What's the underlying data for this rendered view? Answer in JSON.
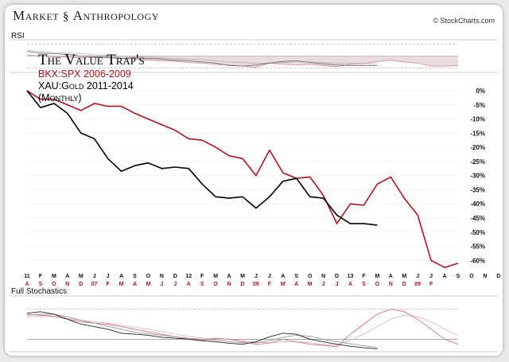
{
  "brand": {
    "word1": "Market",
    "word2": "Anthropology"
  },
  "credit": "© StockCharts.com",
  "rsi_label": "RSI",
  "stoch_label": "Full Stochastics",
  "title": "The Value Trap's",
  "subtitle_red": "BKX:SPX 2006-2009",
  "subtitle_black": "XAU:Gold 2011-2014",
  "subtitle_period": "(Monthly)",
  "colors": {
    "red": "#b0141a",
    "black": "#000000",
    "grid": "#c8c8c8"
  },
  "chart_data": {
    "type": "line",
    "yticks": [
      "0%",
      "-5%",
      "-10%",
      "-15%",
      "-20%",
      "-25%",
      "-30%",
      "-35%",
      "-40%",
      "-45%",
      "-50%",
      "-55%",
      "-60%"
    ],
    "ylim": [
      -63,
      0
    ],
    "x_labels_black": [
      "11",
      "F",
      "M",
      "A",
      "M",
      "J",
      "J",
      "A",
      "S",
      "O",
      "N",
      "D",
      "12",
      "F",
      "M",
      "A",
      "M",
      "J",
      "J",
      "A",
      "S",
      "O",
      "N",
      "D",
      "13",
      "F",
      "M",
      "A",
      "M",
      "J",
      "J",
      "A",
      "S",
      "O",
      "N",
      "D"
    ],
    "x_labels_red": [
      "A",
      "S",
      "O",
      "N",
      "D",
      "07",
      "F",
      "M",
      "A",
      "M",
      "J",
      "J",
      "A",
      "S",
      "O",
      "N",
      "D",
      "08",
      "F",
      "M",
      "A",
      "M",
      "J",
      "J",
      "A",
      "S",
      "O",
      "N",
      "D",
      "09",
      "F"
    ],
    "series": [
      {
        "name": "BKX:SPX 2006-2009",
        "color": "#b0141a",
        "values": [
          0,
          -3,
          -3,
          -5,
          -7,
          -4.5,
          -5.5,
          -5.5,
          -8,
          -10,
          -12,
          -14,
          -17,
          -17.5,
          -20,
          -23,
          -24,
          -30,
          -21,
          -29,
          -31,
          -30.5,
          -37,
          -47,
          -40,
          -40.5,
          -33,
          -30.5,
          -38,
          -44,
          -60,
          -62.5,
          -61
        ]
      },
      {
        "name": "XAU:Gold 2011-2014",
        "color": "#000000",
        "values": [
          0,
          -6,
          -4.5,
          -8,
          -15,
          -17,
          -24,
          -28.5,
          -26.5,
          -25.5,
          -27.5,
          -27,
          -27.5,
          -33,
          -37.5,
          -38,
          -37.5,
          -41.5,
          -37.5,
          -32,
          -31,
          -37.5,
          -38,
          -44,
          -47,
          -47,
          -47.5
        ]
      }
    ]
  },
  "rsi": {
    "levels": [
      70,
      50,
      30
    ],
    "red": [
      52,
      50,
      49,
      48,
      47,
      48,
      47,
      46,
      45,
      43,
      42,
      41,
      39,
      38,
      36,
      35,
      33,
      31,
      38,
      36,
      35,
      36,
      34,
      32,
      36,
      37,
      41,
      43,
      40,
      38,
      33,
      33,
      34
    ],
    "black": [
      58,
      55,
      54,
      53,
      50,
      49,
      48,
      46,
      47,
      46,
      45,
      43,
      42,
      40,
      38,
      34,
      33,
      35,
      38,
      41,
      42,
      39,
      37,
      35,
      34,
      34,
      34
    ],
    "gray": [
      60,
      58,
      56,
      55,
      54,
      52,
      51,
      50,
      49,
      48,
      47,
      46,
      45,
      44,
      42,
      40,
      39,
      38,
      38,
      39,
      40,
      40,
      39,
      38,
      38,
      37,
      37
    ]
  },
  "stoch": {
    "levels": [
      80,
      20
    ],
    "red": [
      70,
      68,
      66,
      60,
      55,
      52,
      50,
      45,
      40,
      35,
      30,
      25,
      20,
      18,
      22,
      20,
      15,
      10,
      12,
      20,
      15,
      10,
      8,
      5,
      30,
      50,
      70,
      80,
      75,
      60,
      40,
      20,
      10
    ],
    "pink": [
      65,
      66,
      65,
      62,
      58,
      55,
      52,
      48,
      44,
      40,
      35,
      30,
      26,
      22,
      21,
      20,
      17,
      14,
      13,
      15,
      15,
      13,
      10,
      8,
      18,
      30,
      45,
      60,
      68,
      65,
      55,
      40,
      28
    ],
    "black": [
      72,
      75,
      70,
      60,
      50,
      45,
      40,
      32,
      30,
      28,
      24,
      22,
      20,
      17,
      15,
      12,
      10,
      15,
      25,
      32,
      30,
      20,
      15,
      10,
      6,
      3,
      1
    ],
    "gray": [
      68,
      70,
      70,
      65,
      58,
      52,
      46,
      40,
      34,
      31,
      28,
      25,
      22,
      20,
      18,
      15,
      13,
      13,
      17,
      24,
      28,
      26,
      20,
      15,
      11,
      7,
      4
    ]
  }
}
